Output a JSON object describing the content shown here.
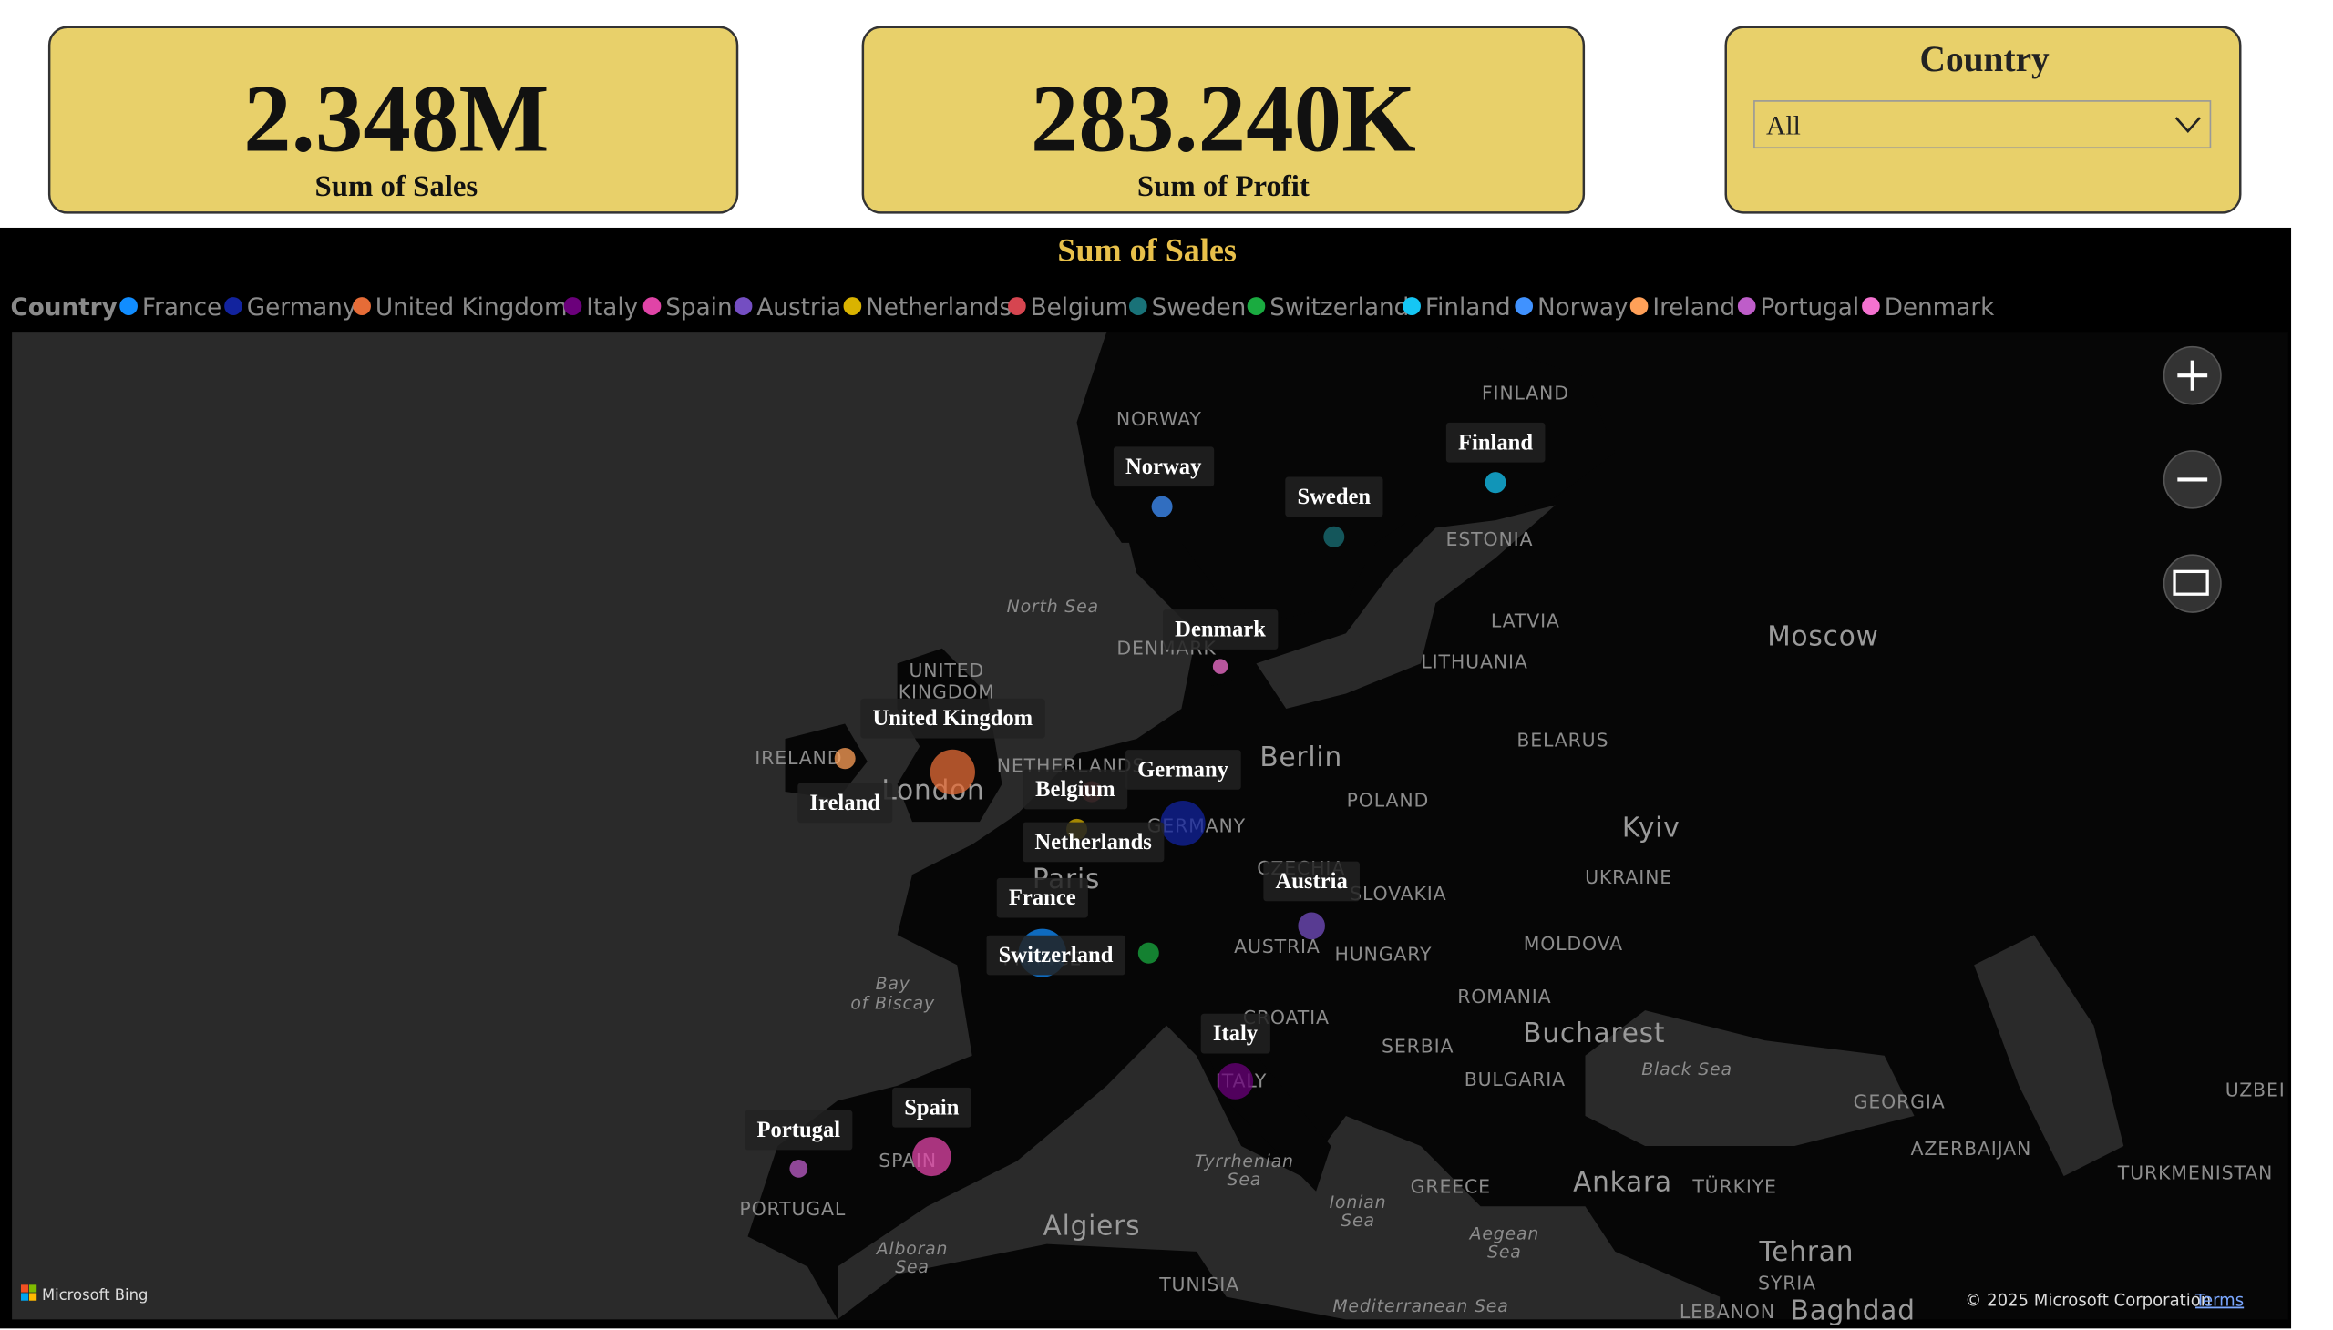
{
  "cards": [
    {
      "value": "2.348M",
      "label": "Sum of Sales"
    },
    {
      "value": "283.240K",
      "label": "Sum of Profit"
    }
  ],
  "slicer": {
    "title": "Country",
    "selected": "All"
  },
  "map": {
    "title": "Sum of Sales",
    "legend_title": "Country",
    "series": [
      {
        "name": "France",
        "color": "#118dff"
      },
      {
        "name": "Germany",
        "color": "#12239e"
      },
      {
        "name": "United Kingdom",
        "color": "#e66c37"
      },
      {
        "name": "Italy",
        "color": "#6b007b"
      },
      {
        "name": "Spain",
        "color": "#e044a7"
      },
      {
        "name": "Austria",
        "color": "#744ec2"
      },
      {
        "name": "Netherlands",
        "color": "#d9b300"
      },
      {
        "name": "Belgium",
        "color": "#d64550"
      },
      {
        "name": "Sweden",
        "color": "#197278"
      },
      {
        "name": "Switzerland",
        "color": "#1aab40"
      },
      {
        "name": "Finland",
        "color": "#15c6f4"
      },
      {
        "name": "Norway",
        "color": "#4092ff"
      },
      {
        "name": "Ireland",
        "color": "#ffa058"
      },
      {
        "name": "Portugal",
        "color": "#be5dc9"
      },
      {
        "name": "Denmark",
        "color": "#f472d0"
      }
    ],
    "places": [
      "NORWAY",
      "FINLAND",
      "ESTONIA",
      "LATVIA",
      "LITHUANIA",
      "BELARUS",
      "Moscow",
      "North Sea",
      "DENMARK",
      "UNITED",
      "KINGDOM",
      "IRELAND",
      "London",
      "NETHERLANDS",
      "Berlin",
      "POLAND",
      "GERMANY",
      "Paris",
      "Kyiv",
      "UKRAINE",
      "CZECHIA",
      "SLOVAKIA",
      "AUSTRIA",
      "HUNGARY",
      "MOLDOVA",
      "ROMANIA",
      "Bucharest",
      "Bay",
      "of Biscay",
      "CROATIA",
      "SERBIA",
      "BULGARIA",
      "ITALY",
      "Black Sea",
      "GEORGIA",
      "AZERBAIJAN",
      "SPAIN",
      "PORTUGAL",
      "Tyrrhenian",
      "Sea",
      "Ionian",
      "Sea",
      "Algiers",
      "Alboran",
      "Sea",
      "GREECE",
      "Ankara",
      "TÜRKIYE",
      "Aegean",
      "Sea",
      "TURKMENISTAN",
      "UZBEI",
      "Tehran",
      "SYRIA",
      "TUNISIA",
      "Mediterranean Sea",
      "LEBANON",
      "Baghdad",
      "FRANCE"
    ],
    "attribution": {
      "logo": "Microsoft Bing",
      "copyright": "© 2025 Microsoft Corporation",
      "terms": "Terms"
    }
  }
}
